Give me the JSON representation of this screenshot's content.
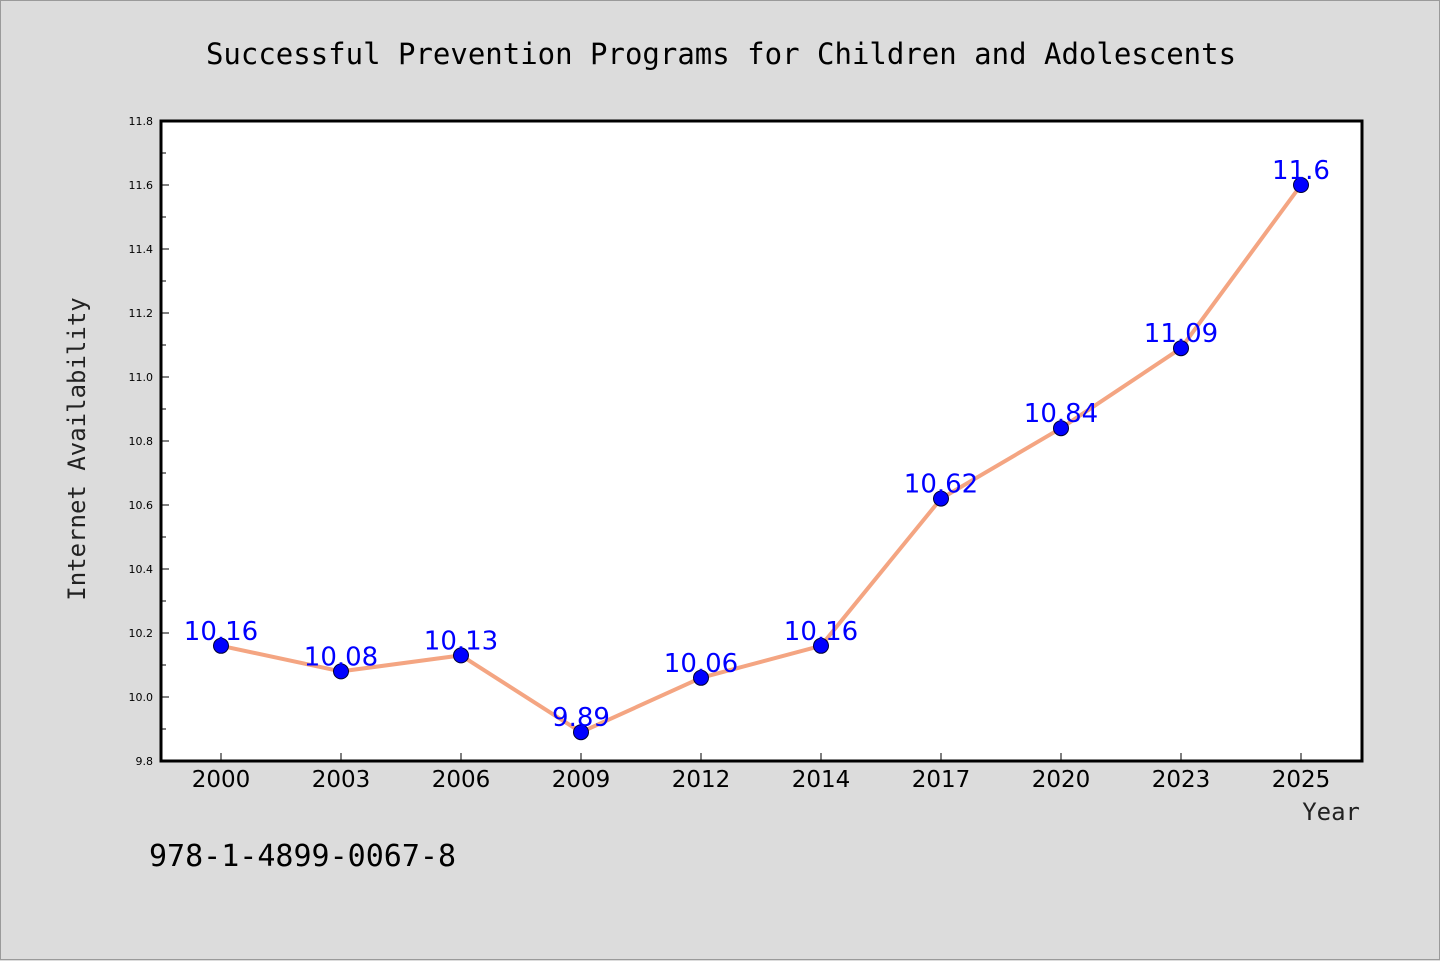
{
  "chart_data": {
    "type": "line",
    "title": "Successful Prevention Programs for Children and Adolescents",
    "xlabel": "Year",
    "ylabel": "Internet Availability",
    "categories": [
      "2000",
      "2003",
      "2006",
      "2009",
      "2012",
      "2014",
      "2017",
      "2020",
      "2023",
      "2025"
    ],
    "series": [
      {
        "values": [
          10.16,
          10.08,
          10.13,
          9.89,
          10.06,
          10.16,
          10.62,
          10.84,
          11.09,
          11.6
        ],
        "labels": [
          "10.16",
          "10.08",
          "10.13",
          "9.89",
          "10.06",
          "10.16",
          "10.62",
          "10.84",
          "11.09",
          "11.6"
        ],
        "line_color": "#f4a582",
        "marker_color": "#0000ff"
      }
    ],
    "ylim": [
      9.8,
      11.8
    ],
    "yticks": [
      "9.8",
      "10.0",
      "10.2",
      "10.4",
      "10.6",
      "10.8",
      "11.0",
      "11.2",
      "11.4",
      "11.6",
      "11.8"
    ],
    "grid": false,
    "legend": "none"
  },
  "annotation": "978-1-4899-0067-8",
  "colors": {
    "background": "#dcdcdc",
    "plot_area": "#ffffff",
    "line": "#f4a582",
    "markers": "#0000ff",
    "data_labels": "#0000ff"
  }
}
